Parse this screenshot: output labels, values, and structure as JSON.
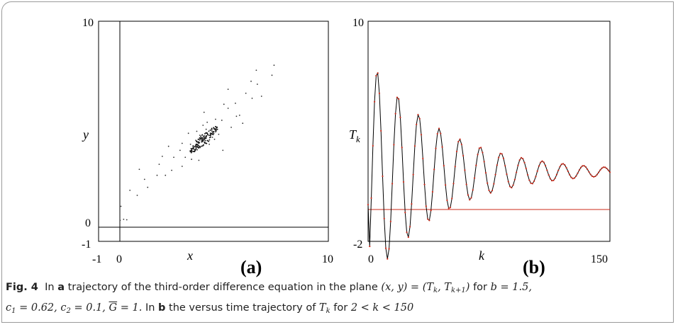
{
  "chart_data": [
    {
      "type": "scatter",
      "panel_label": "(a)",
      "xlabel": "x",
      "ylabel": "y",
      "xlim": [
        -1,
        10
      ],
      "ylim": [
        -1,
        10
      ],
      "xticks": [
        "-1",
        "0",
        "10"
      ],
      "yticks": [
        "10",
        "0",
        "-1"
      ],
      "points": [
        [
          0.03,
          0.05
        ],
        [
          0.2,
          0.1
        ],
        [
          0.35,
          0.08
        ],
        [
          0.07,
          0.75
        ],
        [
          0.5,
          1.55
        ],
        [
          0.85,
          1.3
        ],
        [
          0.95,
          2.6
        ],
        [
          1.2,
          2.1
        ],
        [
          1.35,
          1.7
        ],
        [
          1.8,
          2.3
        ],
        [
          1.9,
          2.85
        ],
        [
          2.2,
          2.3
        ],
        [
          2.5,
          2.55
        ],
        [
          2.6,
          3.2
        ],
        [
          2.35,
          3.75
        ],
        [
          2.9,
          3.55
        ],
        [
          3.0,
          3.9
        ],
        [
          3.15,
          3.2
        ],
        [
          3.3,
          4.4
        ],
        [
          3.45,
          3.1
        ],
        [
          3.55,
          3.7
        ],
        [
          3.65,
          4.05
        ],
        [
          3.85,
          4.3
        ],
        [
          4.0,
          4.8
        ],
        [
          4.15,
          4.6
        ],
        [
          4.3,
          3.85
        ],
        [
          4.45,
          4.2
        ],
        [
          4.6,
          5.1
        ],
        [
          4.75,
          4.35
        ],
        [
          4.9,
          5.05
        ],
        [
          5.2,
          5.65
        ],
        [
          5.35,
          4.7
        ],
        [
          5.55,
          5.9
        ],
        [
          5.75,
          5.3
        ],
        [
          6.05,
          6.4
        ],
        [
          6.35,
          6.15
        ],
        [
          6.8,
          6.25
        ],
        [
          6.6,
          6.85
        ],
        [
          5.2,
          6.6
        ],
        [
          4.35,
          4.55
        ],
        [
          5.0,
          5.85
        ],
        [
          4.05,
          5.45
        ],
        [
          6.3,
          7.0
        ],
        [
          6.55,
          7.55
        ],
        [
          7.3,
          7.3
        ],
        [
          7.4,
          7.8
        ],
        [
          5.9,
          4.9
        ],
        [
          4.95,
          3.55
        ],
        [
          3.8,
          3.05
        ],
        [
          3.0,
          2.75
        ],
        [
          4.2,
          4.95
        ],
        [
          4.55,
          4.1
        ],
        [
          3.7,
          4.5
        ],
        [
          5.6,
          5.25
        ],
        [
          2.05,
          3.25
        ],
        [
          3.4,
          3.85
        ]
      ],
      "cluster_center": [
        4.05,
        4.1
      ]
    },
    {
      "type": "line",
      "panel_label": "(b)",
      "xlabel": "k",
      "ylabel": "T_k",
      "xlim": [
        0,
        150
      ],
      "ylim": [
        -2,
        10
      ],
      "xticks": [
        "0",
        "150"
      ],
      "yticks": [
        "10",
        "-2"
      ],
      "series": [
        {
          "color": "#000000",
          "formula_note": "damped oscillation: T_k = 1 + A·e^(-λk)·sin(ωk+φ)",
          "start": 0,
          "A": 6.2,
          "decay": 0.022,
          "period": 12.8,
          "phase_deg": -80
        },
        {
          "color": "#cc2a1a",
          "markers": true,
          "equilibrium_line": 0
        }
      ]
    }
  ],
  "caption": {
    "fig_label": "Fig. 4",
    "text_1": "In",
    "bold_a": "a",
    "text_2": "trajectory of the third-order difference equation in the plane",
    "formula_plane_1": "(x, y) = (T",
    "sub_k": "k",
    "formula_plane_2": ", T",
    "sub_k1": "k+1",
    "formula_plane_3": ")",
    "text_3": "for",
    "formula_b": "b = 1.5,",
    "formula_c1": "c",
    "sub_1": "1",
    "formula_c1v": " = 0.62, c",
    "sub_2": "2",
    "formula_c2v": " = 0.1, ",
    "formula_G": "G",
    "formula_Gv": " = 1.",
    "text_4": "In",
    "bold_b": "b",
    "text_5": "the versus time trajectory of",
    "formula_T": "T",
    "sub_kk": "k",
    "text_6": "for",
    "formula_range": "2 < k < 150"
  }
}
